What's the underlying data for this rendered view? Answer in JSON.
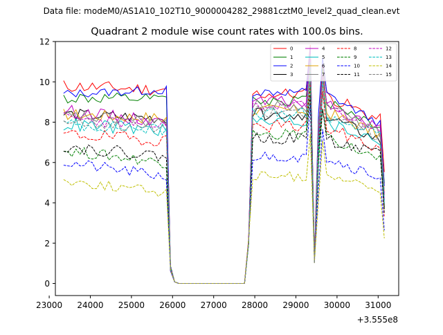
{
  "figure": {
    "suptitle": "Data file: modeM0/AS1A10_102T10_9000004282_29881cztM0_level2_quad_clean.evt"
  },
  "chart_data": {
    "type": "line",
    "title": "Quadrant 2 module wise count rates with 100.0s bins.",
    "xlabel": "",
    "ylabel": "",
    "x_offset_label": "+3.555e8",
    "xlim": [
      23150,
      31500
    ],
    "ylim": [
      -0.6,
      12.0
    ],
    "xticks": [
      23000,
      24000,
      25000,
      26000,
      27000,
      28000,
      29000,
      30000,
      31000
    ],
    "yticks": [
      0,
      2,
      4,
      6,
      8,
      10,
      12
    ],
    "legend_location": "upper-right",
    "x_segments": [
      {
        "start": 23350,
        "end": 25850,
        "step": 100
      },
      {
        "start": 25950,
        "end": 27750,
        "step": 100
      },
      {
        "start": 27850,
        "end": 31150,
        "step": 100
      }
    ],
    "series": [
      {
        "name": "0",
        "color": "#ff0000",
        "dash": "solid",
        "base": [
          9.8,
          9.6,
          9.4,
          8.0
        ],
        "noise": 0.32,
        "seed": 11
      },
      {
        "name": "1",
        "color": "#008000",
        "dash": "solid",
        "base": [
          9.2,
          9.1,
          9.1,
          7.7
        ],
        "noise": 0.3,
        "seed": 12
      },
      {
        "name": "2",
        "color": "#0000ff",
        "dash": "solid",
        "base": [
          9.4,
          9.6,
          9.5,
          7.8
        ],
        "noise": 0.22,
        "seed": 13
      },
      {
        "name": "3",
        "color": "#000000",
        "dash": "solid",
        "base": [
          8.4,
          8.2,
          8.4,
          7.0
        ],
        "noise": 0.3,
        "seed": 14
      },
      {
        "name": "4",
        "color": "#c000c0",
        "dash": "solid",
        "base": [
          8.6,
          8.0,
          9.0,
          7.6
        ],
        "noise": 0.3,
        "seed": 15
      },
      {
        "name": "5",
        "color": "#00bfbf",
        "dash": "solid",
        "base": [
          7.9,
          7.6,
          8.0,
          7.0
        ],
        "noise": 0.35,
        "seed": 16
      },
      {
        "name": "6",
        "color": "#e0a000",
        "dash": "solid",
        "base": [
          8.4,
          8.2,
          8.6,
          7.3
        ],
        "noise": 0.3,
        "seed": 17
      },
      {
        "name": "7",
        "color": "#808080",
        "dash": "solid",
        "base": [
          8.3,
          8.0,
          8.8,
          7.4
        ],
        "noise": 0.3,
        "seed": 18
      },
      {
        "name": "8",
        "color": "#ff0000",
        "dash": "dashed",
        "base": [
          7.4,
          7.1,
          7.8,
          6.6
        ],
        "noise": 0.32,
        "seed": 19
      },
      {
        "name": "9",
        "color": "#008000",
        "dash": "dashed",
        "base": [
          6.6,
          6.0,
          7.4,
          6.0
        ],
        "noise": 0.28,
        "seed": 20
      },
      {
        "name": "10",
        "color": "#0000ff",
        "dash": "dashed",
        "base": [
          6.0,
          5.3,
          6.3,
          5.2
        ],
        "noise": 0.28,
        "seed": 21
      },
      {
        "name": "11",
        "color": "#000000",
        "dash": "dashed",
        "base": [
          6.8,
          6.3,
          7.2,
          6.3
        ],
        "noise": 0.3,
        "seed": 22
      },
      {
        "name": "12",
        "color": "#c000c0",
        "dash": "dashed",
        "base": [
          8.2,
          7.8,
          8.8,
          7.5
        ],
        "noise": 0.3,
        "seed": 23
      },
      {
        "name": "13",
        "color": "#00bfbf",
        "dash": "dashed",
        "base": [
          7.9,
          7.6,
          8.4,
          7.3
        ],
        "noise": 0.3,
        "seed": 24
      },
      {
        "name": "14",
        "color": "#bfbf00",
        "dash": "dashed",
        "base": [
          5.1,
          4.5,
          5.3,
          4.6
        ],
        "noise": 0.25,
        "seed": 25
      },
      {
        "name": "15",
        "color": "#808080",
        "dash": "dashed",
        "base": [
          8.1,
          7.7,
          8.5,
          7.2
        ],
        "noise": 0.3,
        "seed": 26
      }
    ]
  }
}
